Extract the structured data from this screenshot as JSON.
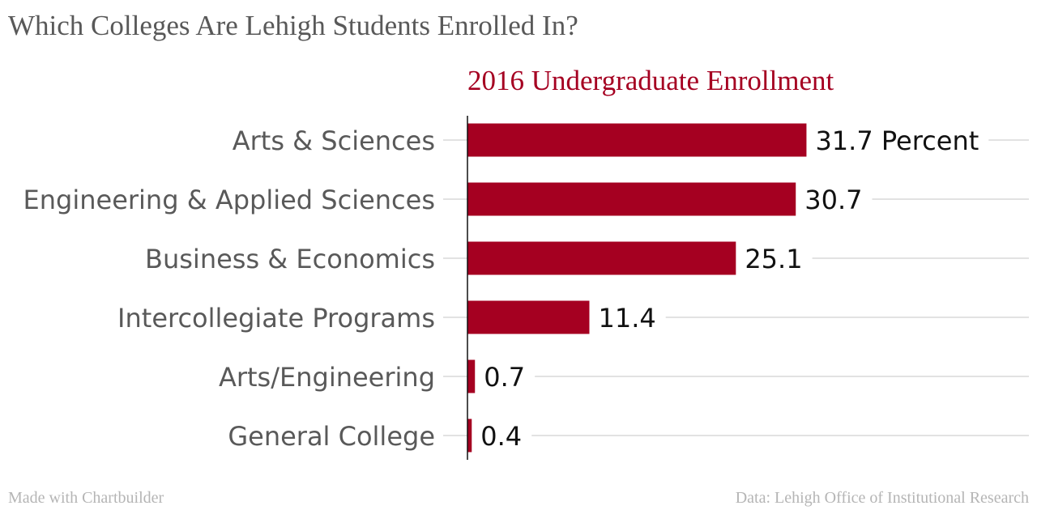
{
  "title": "Which Colleges Are Lehigh Students Enrolled In?",
  "footer": {
    "left": "Made with Chartbuilder",
    "right": "Data: Lehigh Office of Institutional Research"
  },
  "colors": {
    "bar": "#a50021",
    "subtitle": "#a50021",
    "gridline": "#d9d9d9",
    "axis": "#111111"
  },
  "chart_data": {
    "type": "bar",
    "orientation": "horizontal",
    "title": "2016 Undergraduate Enrollment",
    "categories": [
      "Arts & Sciences",
      "Engineering & Applied Sciences",
      "Business & Economics",
      "Intercollegiate Programs",
      "Arts/Engineering",
      "General College"
    ],
    "values": [
      31.7,
      30.7,
      25.1,
      11.4,
      0.7,
      0.4
    ],
    "data_labels": [
      "31.7 Percent",
      "30.7",
      "25.1",
      "11.4",
      "0.7",
      "0.4"
    ],
    "unit": "Percent",
    "xlim": [
      0,
      52.5
    ],
    "grid": true
  }
}
